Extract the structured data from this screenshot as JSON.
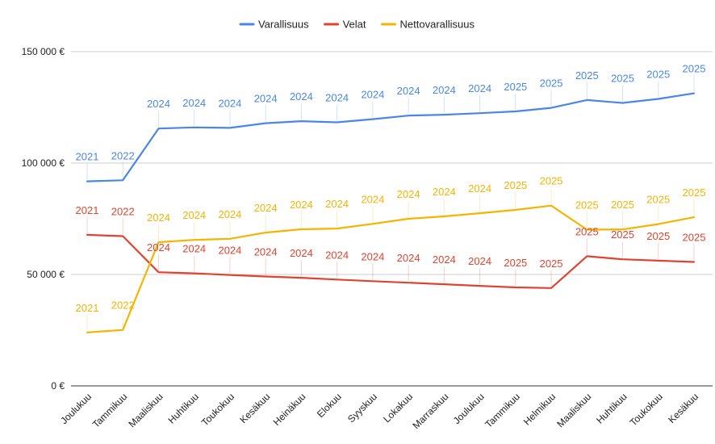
{
  "chart_data": {
    "type": "line",
    "categories": [
      "Joulukuu",
      "Tammikuu",
      "Maaliskuu",
      "Huhtikuu",
      "Toukokuu",
      "Kesäkuu",
      "Heinäkuu",
      "Elokuu",
      "Syyskuu",
      "Lokakuu",
      "Marraskuu",
      "Joulukuu",
      "Tammikuu",
      "Helmikuu",
      "Maaliskuu",
      "Huhtikuu",
      "Toukokuu",
      "Kesäkuu"
    ],
    "ylim": [
      0,
      150000
    ],
    "yticks": [
      {
        "value": 0,
        "label": "0 €"
      },
      {
        "value": 50000,
        "label": "50 000 €"
      },
      {
        "value": 100000,
        "label": "100 000 €"
      },
      {
        "value": 150000,
        "label": "150 000 €"
      }
    ],
    "grid": true,
    "legend_position": "top",
    "series": [
      {
        "name": "Varallisuus",
        "color": "#4a86e8",
        "values": [
          91800,
          92300,
          115500,
          116000,
          115800,
          117900,
          118800,
          118300,
          119700,
          121300,
          121700,
          122400,
          123200,
          124800,
          128300,
          127000,
          128800,
          131300
        ],
        "labels": [
          "2021",
          "2022",
          "2024",
          "2024",
          "2024",
          "2024",
          "2024",
          "2024",
          "2024",
          "2024",
          "2024",
          "2024",
          "2025",
          "2025",
          "2025",
          "2025",
          "2025",
          "2025"
        ]
      },
      {
        "name": "Velat",
        "color": "#e0432f",
        "values": [
          67800,
          67200,
          51000,
          50500,
          49800,
          49100,
          48500,
          47700,
          47000,
          46300,
          45600,
          44900,
          44200,
          43900,
          58200,
          56800,
          56200,
          55600
        ],
        "labels": [
          "2021",
          "2022",
          "2024",
          "2024",
          "2024",
          "2024",
          "2024",
          "2024",
          "2024",
          "2024",
          "2024",
          "2024",
          "2025",
          "2025",
          "2025",
          "2025",
          "2025",
          "2025"
        ]
      },
      {
        "name": "Nettovarallisuus",
        "color": "#f4b400",
        "values": [
          24000,
          25100,
          64500,
          65500,
          66000,
          68800,
          70300,
          70600,
          72700,
          75000,
          76100,
          77500,
          79000,
          80900,
          70100,
          70200,
          72600,
          75700
        ],
        "labels": [
          "2021",
          "2022",
          "2024",
          "2024",
          "2024",
          "2024",
          "2024",
          "2024",
          "2024",
          "2024",
          "2024",
          "2024",
          "2025",
          "2025",
          "2025",
          "2025",
          "2025",
          "2025"
        ]
      }
    ]
  }
}
